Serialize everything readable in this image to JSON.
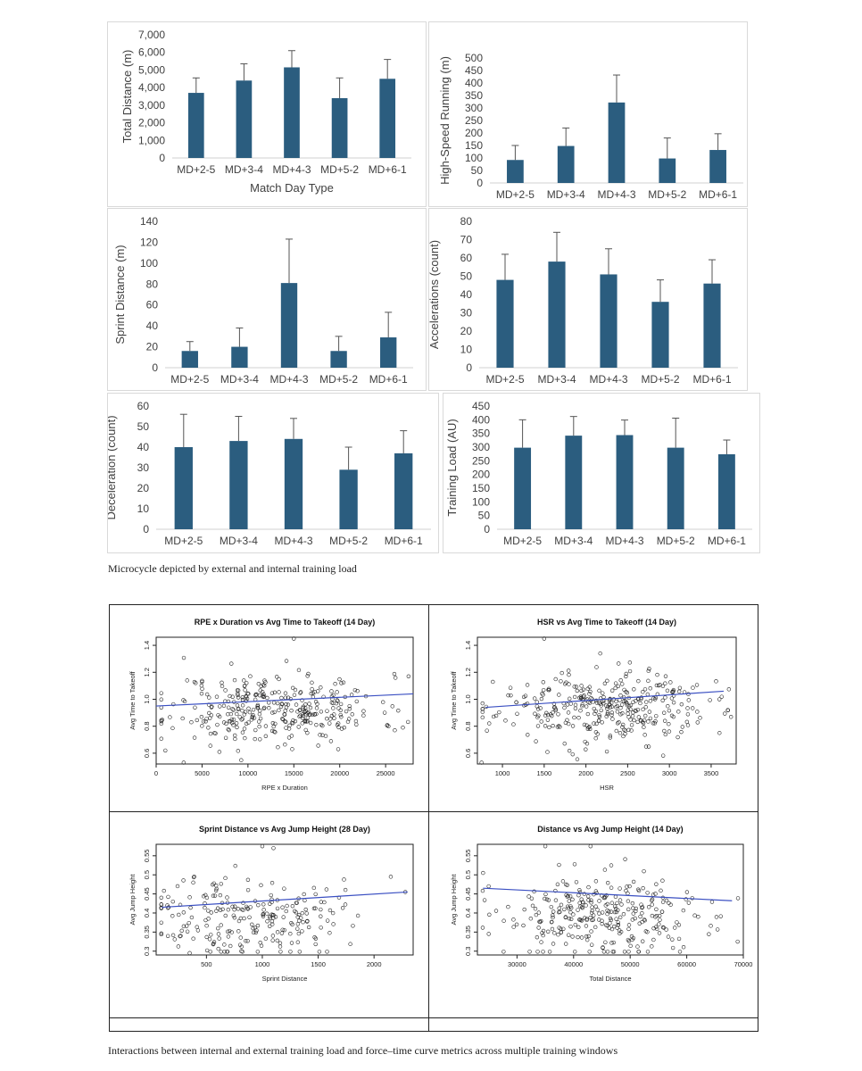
{
  "figure1": {
    "caption": "Microcycle depicted by external and internal training load",
    "bar_color": "#2b5d7f"
  },
  "figure2": {
    "caption": "Interactions between internal and external training load and force–time curve metrics across multiple training windows"
  },
  "chart_data": [
    {
      "type": "bar",
      "title": "",
      "categories": [
        "MD+2-5",
        "MD+3-4",
        "MD+4-3",
        "MD+5-2",
        "MD+6-1"
      ],
      "values": [
        3700,
        4400,
        5150,
        3400,
        4500
      ],
      "errors": [
        850,
        950,
        950,
        1150,
        1100
      ],
      "xlabel": "Match Day Type",
      "ylabel": "Total Distance (m)",
      "ylim": [
        0,
        7000
      ],
      "yticks": [
        "0",
        "1,000",
        "2,000",
        "3,000",
        "4,000",
        "5,000",
        "6,000",
        "7,000"
      ]
    },
    {
      "type": "bar",
      "title": "",
      "categories": [
        "MD+2-5",
        "MD+3-4",
        "MD+4-3",
        "MD+5-2",
        "MD+6-1"
      ],
      "values": [
        92,
        148,
        322,
        98,
        132
      ],
      "errors": [
        58,
        72,
        110,
        82,
        65
      ],
      "xlabel": "",
      "ylabel": "High-Speed Running (m)",
      "ylim": [
        0,
        500
      ],
      "yticks": [
        "0",
        "50",
        "100",
        "150",
        "200",
        "250",
        "300",
        "350",
        "400",
        "450",
        "500"
      ]
    },
    {
      "type": "bar",
      "title": "",
      "categories": [
        "MD+2-5",
        "MD+3-4",
        "MD+4-3",
        "MD+5-2",
        "MD+6-1"
      ],
      "values": [
        16,
        20,
        81,
        16,
        29
      ],
      "errors": [
        9,
        18,
        42,
        14,
        24
      ],
      "xlabel": "",
      "ylabel": "Sprint Distance (m)",
      "ylim": [
        0,
        140
      ],
      "yticks": [
        "0",
        "20",
        "40",
        "60",
        "80",
        "100",
        "120",
        "140"
      ]
    },
    {
      "type": "bar",
      "title": "",
      "categories": [
        "MD+2-5",
        "MD+3-4",
        "MD+4-3",
        "MD+5-2",
        "MD+6-1"
      ],
      "values": [
        48,
        58,
        51,
        36,
        46
      ],
      "errors": [
        14,
        16,
        14,
        12,
        13
      ],
      "xlabel": "",
      "ylabel": "Accelerations (count)",
      "ylim": [
        0,
        80
      ],
      "yticks": [
        "0",
        "10",
        "20",
        "30",
        "40",
        "50",
        "60",
        "70",
        "80"
      ]
    },
    {
      "type": "bar",
      "title": "",
      "categories": [
        "MD+2-5",
        "MD+3-4",
        "MD+4-3",
        "MD+5-2",
        "MD+6-1"
      ],
      "values": [
        40,
        43,
        44,
        29,
        37
      ],
      "errors": [
        16,
        12,
        10,
        11,
        11
      ],
      "xlabel": "",
      "ylabel": "Deceleration (count)",
      "ylim": [
        0,
        60
      ],
      "yticks": [
        "0",
        "10",
        "20",
        "30",
        "40",
        "50",
        "60"
      ]
    },
    {
      "type": "bar",
      "title": "",
      "categories": [
        "MD+2-5",
        "MD+3-4",
        "MD+4-3",
        "MD+5-2",
        "MD+6-1"
      ],
      "values": [
        298,
        342,
        344,
        298,
        274
      ],
      "errors": [
        102,
        70,
        55,
        108,
        52
      ],
      "xlabel": "",
      "ylabel": "Training Load (AU)",
      "ylim": [
        0,
        450
      ],
      "yticks": [
        "0",
        "50",
        "100",
        "150",
        "200",
        "250",
        "300",
        "350",
        "400",
        "450"
      ]
    },
    {
      "type": "scatter",
      "title": "RPE x Duration vs Avg Time to Takeoff (14 Day)",
      "xlabel": "RPE x Duration",
      "ylabel": "Avg Time to Takeoff",
      "xlim": [
        0,
        28000
      ],
      "ylim": [
        0.52,
        1.46
      ],
      "xticks": [
        0,
        5000,
        10000,
        15000,
        20000,
        25000
      ],
      "yticks": [
        0.6,
        0.8,
        1.0,
        1.2,
        1.4
      ],
      "trend": [
        [
          0,
          0.95
        ],
        [
          28000,
          1.04
        ]
      ],
      "n_points": 340,
      "seed": 11,
      "cloud": {
        "xmean": 13000,
        "xsd": 5600,
        "ymean": 0.93,
        "ysd": 0.13
      },
      "points": [
        [
          15000,
          1.45
        ],
        [
          3000,
          0.53
        ],
        [
          1000,
          0.62
        ],
        [
          27500,
          1.17
        ],
        [
          26000,
          0.77
        ]
      ]
    },
    {
      "type": "scatter",
      "title": "HSR vs Avg Time to Takeoff (14 Day)",
      "xlabel": "HSR",
      "ylabel": "Avg Time to Takeoff",
      "xlim": [
        700,
        3800
      ],
      "ylim": [
        0.52,
        1.46
      ],
      "xticks": [
        1000,
        1500,
        2000,
        2500,
        3000,
        3500
      ],
      "yticks": [
        0.6,
        0.8,
        1.0,
        1.2,
        1.4
      ],
      "trend": [
        [
          800,
          0.94
        ],
        [
          3650,
          1.06
        ]
      ],
      "n_points": 340,
      "seed": 23,
      "cloud": {
        "xmean": 2200,
        "xsd": 620,
        "ymean": 0.94,
        "ysd": 0.13
      },
      "points": [
        [
          1500,
          1.45
        ],
        [
          750,
          0.53
        ],
        [
          3600,
          0.75
        ],
        [
          3700,
          0.92
        ]
      ]
    },
    {
      "type": "scatter",
      "title": "Sprint Distance vs Avg Jump Height (28 Day)",
      "xlabel": "Sprint Distance",
      "ylabel": "Avg Jump Height",
      "xlim": [
        50,
        2350
      ],
      "ylim": [
        0.29,
        0.58
      ],
      "xticks": [
        500,
        1000,
        1500,
        2000
      ],
      "yticks": [
        0.3,
        0.35,
        0.4,
        0.45,
        0.5,
        0.55
      ],
      "trend": [
        [
          100,
          0.415
        ],
        [
          2300,
          0.455
        ]
      ],
      "n_points": 230,
      "seed": 37,
      "cloud": {
        "xmean": 850,
        "xsd": 420,
        "ymean": 0.39,
        "ysd": 0.055
      },
      "points": [
        [
          1000,
          0.575
        ],
        [
          1100,
          0.57
        ],
        [
          2150,
          0.495
        ],
        [
          2280,
          0.455
        ],
        [
          350,
          0.295
        ],
        [
          150,
          0.42
        ],
        [
          200,
          0.43
        ]
      ]
    },
    {
      "type": "scatter",
      "title": "Distance vs Avg Jump Height (14 Day)",
      "xlabel": "Total Distance",
      "ylabel": "Avg Jump Height",
      "xlim": [
        23000,
        70000
      ],
      "ylim": [
        0.29,
        0.58
      ],
      "xticks": [
        30000,
        40000,
        50000,
        60000,
        70000
      ],
      "yticks": [
        0.3,
        0.35,
        0.4,
        0.45,
        0.5,
        0.55
      ],
      "trend": [
        [
          24000,
          0.465
        ],
        [
          68000,
          0.432
        ]
      ],
      "n_points": 300,
      "seed": 53,
      "cloud": {
        "xmean": 46000,
        "xsd": 9500,
        "ymean": 0.39,
        "ysd": 0.055
      },
      "points": [
        [
          35000,
          0.575
        ],
        [
          43000,
          0.575
        ],
        [
          69000,
          0.325
        ],
        [
          24000,
          0.505
        ],
        [
          25000,
          0.47
        ]
      ]
    }
  ]
}
